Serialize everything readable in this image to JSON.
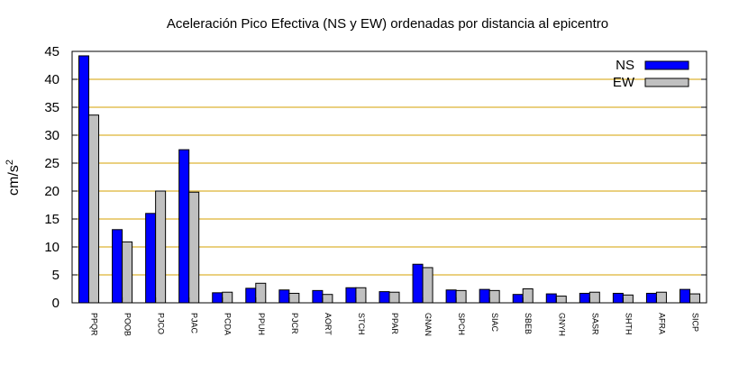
{
  "chart_data": {
    "type": "bar",
    "title": "Aceleración Pico Efectiva (NS y EW) ordenadas por distancia al epicentro",
    "xlabel": "",
    "ylabel": "cm/s",
    "ylabel_superscript": "2",
    "ylim": [
      0,
      45
    ],
    "yticks": [
      0,
      5,
      10,
      15,
      20,
      25,
      30,
      35,
      40,
      45
    ],
    "grid": "horizontal",
    "legend_position": "top-right",
    "categories": [
      "PPQR",
      "POOB",
      "PJCO",
      "PJAC",
      "PCDA",
      "PPUH",
      "PJCR",
      "AORT",
      "STCH",
      "PPAR",
      "GNAN",
      "SPCH",
      "SIAC",
      "SBEB",
      "GNYH",
      "SASR",
      "SHTH",
      "AFRA",
      "SICP"
    ],
    "series": [
      {
        "name": "NS",
        "color": "#0000ff",
        "values": [
          44.2,
          13.1,
          16.0,
          27.4,
          1.8,
          2.6,
          2.3,
          2.2,
          2.7,
          2.0,
          6.9,
          2.3,
          2.4,
          1.5,
          1.6,
          1.7,
          1.7,
          1.7,
          2.4
        ]
      },
      {
        "name": "EW",
        "color": "#c0c0c0",
        "values": [
          33.6,
          10.9,
          20.0,
          19.8,
          1.9,
          3.5,
          1.7,
          1.5,
          2.7,
          1.9,
          6.3,
          2.2,
          2.2,
          2.5,
          1.2,
          1.9,
          1.4,
          1.9,
          1.6
        ]
      }
    ]
  }
}
